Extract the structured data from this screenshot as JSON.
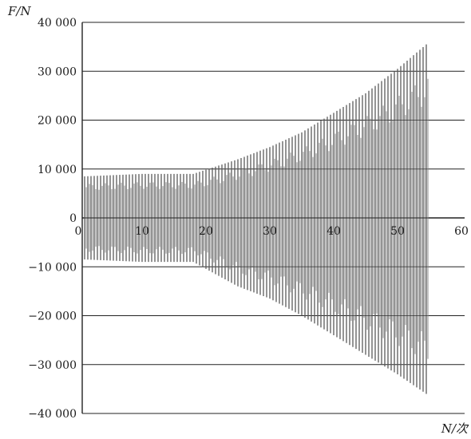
{
  "chart_data": {
    "type": "line",
    "ylabel": "F/N",
    "xlabel": "N/次",
    "xlim": [
      0,
      60
    ],
    "ylim": [
      -40000,
      40000
    ],
    "grid": "horizontal",
    "x_ticks": [
      {
        "value": 0,
        "label": "0"
      },
      {
        "value": 10,
        "label": "10"
      },
      {
        "value": 20,
        "label": "20"
      },
      {
        "value": 30,
        "label": "30"
      },
      {
        "value": 40,
        "label": "40"
      },
      {
        "value": 50,
        "label": "50"
      },
      {
        "value": 60,
        "label": "60"
      }
    ],
    "y_ticks": [
      {
        "value": 40000,
        "label": "40 000"
      },
      {
        "value": 30000,
        "label": "30 000"
      },
      {
        "value": 20000,
        "label": "20 000"
      },
      {
        "value": 10000,
        "label": "10 000"
      },
      {
        "value": 0,
        "label": "0"
      },
      {
        "value": -10000,
        "label": "−10 000"
      },
      {
        "value": -20000,
        "label": "−20 000"
      },
      {
        "value": -30000,
        "label": "−30 000"
      },
      {
        "value": -40000,
        "label": "−40 000"
      }
    ],
    "series": [
      {
        "color": "#5a5a5a",
        "envelope": {
          "x": [
            1,
            10,
            18,
            25,
            30,
            35,
            40,
            45,
            50,
            54.5
          ],
          "upper": [
            8500,
            9000,
            9000,
            12000,
            14500,
            17500,
            21500,
            25500,
            30500,
            35500
          ],
          "lower": [
            -8500,
            -9000,
            -9000,
            -14000,
            -16500,
            -20000,
            -24000,
            -28000,
            -32000,
            -36000
          ]
        }
      }
    ]
  }
}
